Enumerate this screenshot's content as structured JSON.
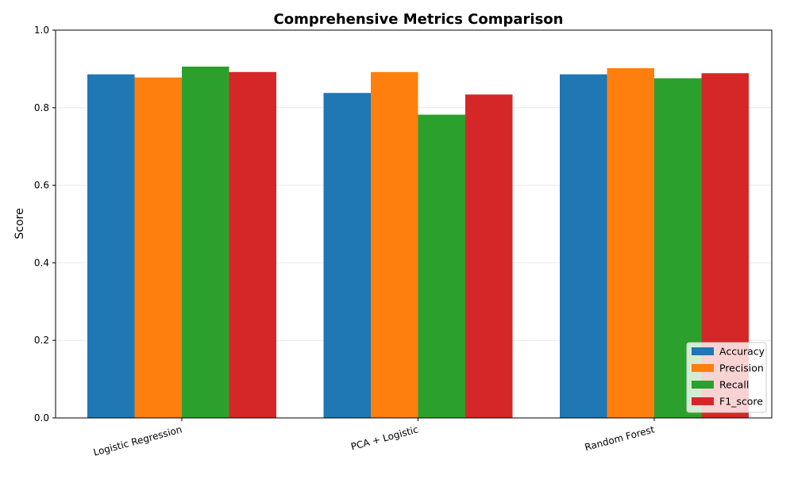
{
  "chart_data": {
    "type": "bar",
    "title": "Comprehensive Metrics Comparison",
    "xlabel": "",
    "ylabel": "Score",
    "ylim": [
      0,
      1
    ],
    "yticks": [
      "0.0",
      "0.2",
      "0.4",
      "0.6",
      "0.8",
      "1.0"
    ],
    "grid": true,
    "legend_position": "bottom-right",
    "categories": [
      "Logistic Regression",
      "PCA + Logistic",
      "Random Forest"
    ],
    "series": [
      {
        "name": "Accuracy",
        "color": "#1f77b4",
        "values": [
          0.886,
          0.838,
          0.886
        ]
      },
      {
        "name": "Precision",
        "color": "#ff7f0e",
        "values": [
          0.878,
          0.892,
          0.902
        ]
      },
      {
        "name": "Recall",
        "color": "#2ca02c",
        "values": [
          0.906,
          0.782,
          0.876
        ]
      },
      {
        "name": "F1_score",
        "color": "#d62728",
        "values": [
          0.892,
          0.834,
          0.889
        ]
      }
    ]
  }
}
